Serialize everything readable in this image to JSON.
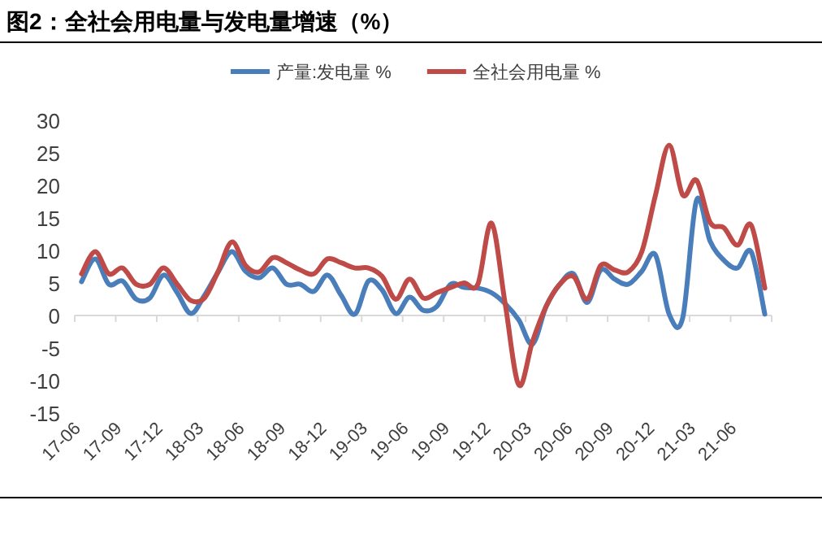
{
  "chart_data": {
    "type": "line",
    "title": "图2：全社会用电量与发电量增速（%）",
    "categories": [
      "17-06",
      null,
      null,
      "17-09",
      null,
      null,
      "17-12",
      null,
      null,
      "18-03",
      null,
      null,
      "18-06",
      null,
      null,
      "18-09",
      null,
      null,
      "18-12",
      null,
      null,
      "19-03",
      null,
      null,
      "19-06",
      null,
      null,
      "19-09",
      null,
      null,
      "19-12",
      null,
      null,
      "20-03",
      null,
      null,
      "20-06",
      null,
      null,
      "20-09",
      null,
      null,
      "20-12",
      null,
      null,
      "21-03",
      null,
      null,
      "21-06",
      null,
      null
    ],
    "series": [
      {
        "name": "产量:发电量 %",
        "color": "#4a7ebb",
        "values": [
          5.2,
          8.7,
          4.8,
          5.3,
          2.5,
          2.7,
          6.2,
          3.5,
          0.3,
          3.1,
          6.7,
          9.8,
          6.8,
          5.8,
          7.3,
          4.8,
          4.8,
          3.7,
          6.2,
          3.1,
          0.2,
          5.3,
          3.9,
          0.3,
          2.8,
          0.8,
          1.4,
          4.8,
          4.3,
          4.2,
          3.5,
          1.8,
          -0.7,
          -4.4,
          1.4,
          4.8,
          6.4,
          2.0,
          7.0,
          5.6,
          4.8,
          6.8,
          9.3,
          0.2,
          -0.3,
          17.7,
          11.4,
          8.5,
          7.3,
          9.8,
          0.2
        ]
      },
      {
        "name": "全社会用电量 %",
        "color": "#be4b48",
        "values": [
          6.4,
          9.8,
          6.4,
          7.3,
          4.8,
          4.8,
          7.3,
          4.8,
          2.3,
          2.7,
          6.8,
          11.3,
          7.7,
          6.7,
          8.9,
          8.1,
          7.0,
          6.4,
          8.7,
          8.1,
          7.3,
          7.3,
          6.0,
          2.5,
          5.6,
          2.7,
          3.5,
          4.3,
          5.0,
          4.8,
          14.2,
          1.8,
          -10.7,
          -4.0,
          1.4,
          4.8,
          6.0,
          2.5,
          7.7,
          7.0,
          6.7,
          9.8,
          18.5,
          26.2,
          18.5,
          20.8,
          14.3,
          13.5,
          10.8,
          13.9,
          4.2
        ]
      }
    ],
    "ylim": [
      -15,
      30
    ],
    "yticks": [
      -15,
      -10,
      -5,
      0,
      5,
      10,
      15,
      20,
      25,
      30
    ],
    "legend": "top"
  }
}
